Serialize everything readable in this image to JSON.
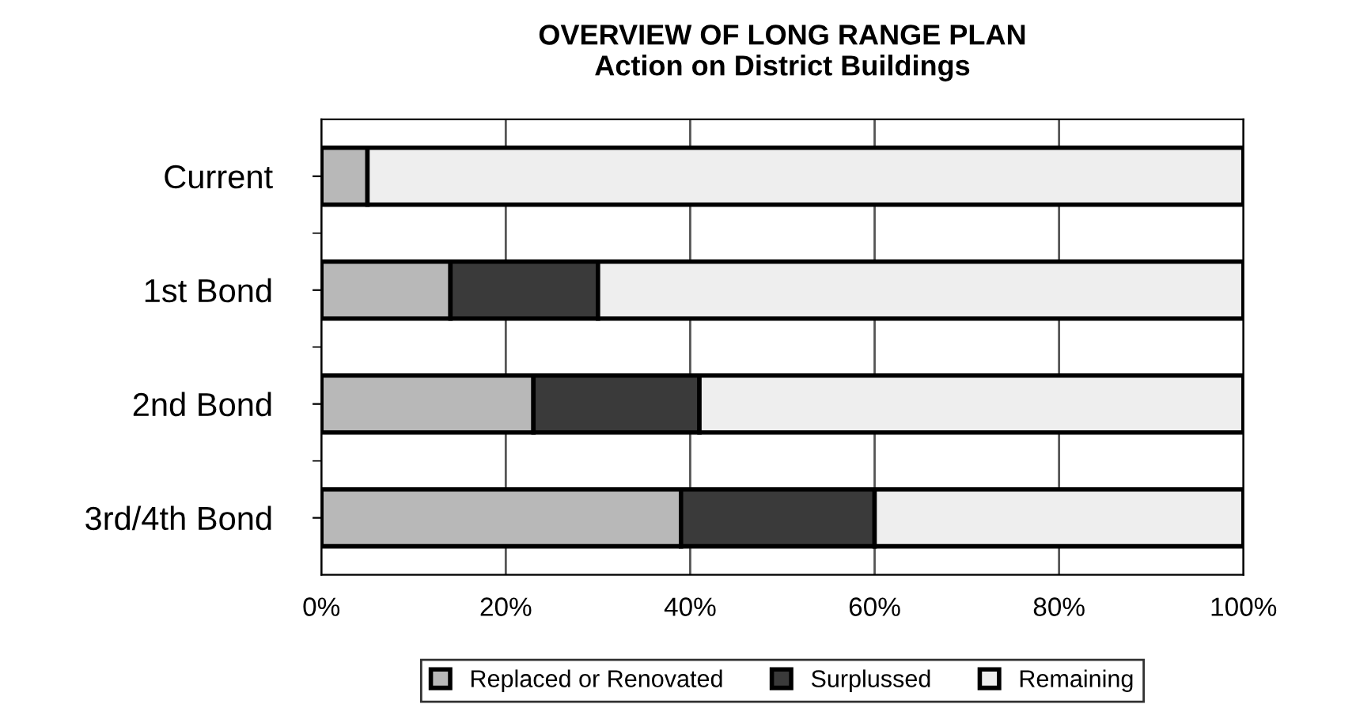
{
  "chart_data": {
    "type": "bar",
    "orientation": "horizontal",
    "stacked": true,
    "title": "OVERVIEW OF LONG RANGE PLAN\nAction on District Buildings",
    "categories": [
      "Current",
      "1st Bond",
      "2nd Bond",
      "3rd/4th Bond"
    ],
    "series": [
      {
        "name": "Replaced or Renovated",
        "color": "#b8b8b8",
        "values": [
          5,
          14,
          23,
          39
        ]
      },
      {
        "name": "Surplussed",
        "color": "#3a3a3a",
        "values": [
          null,
          16,
          18,
          21
        ]
      },
      {
        "name": "Remaining",
        "color": "#eeeeee",
        "values": [
          95,
          70,
          59,
          40
        ]
      }
    ],
    "xlim": [
      0,
      100
    ],
    "xticks": [
      {
        "value": 0,
        "label": "0%"
      },
      {
        "value": 20,
        "label": "20%"
      },
      {
        "value": 40,
        "label": "40%"
      },
      {
        "value": 60,
        "label": "60%"
      },
      {
        "value": 80,
        "label": "80%"
      },
      {
        "value": 100,
        "label": "100%"
      }
    ],
    "grid": "x",
    "legend": "bottom"
  }
}
